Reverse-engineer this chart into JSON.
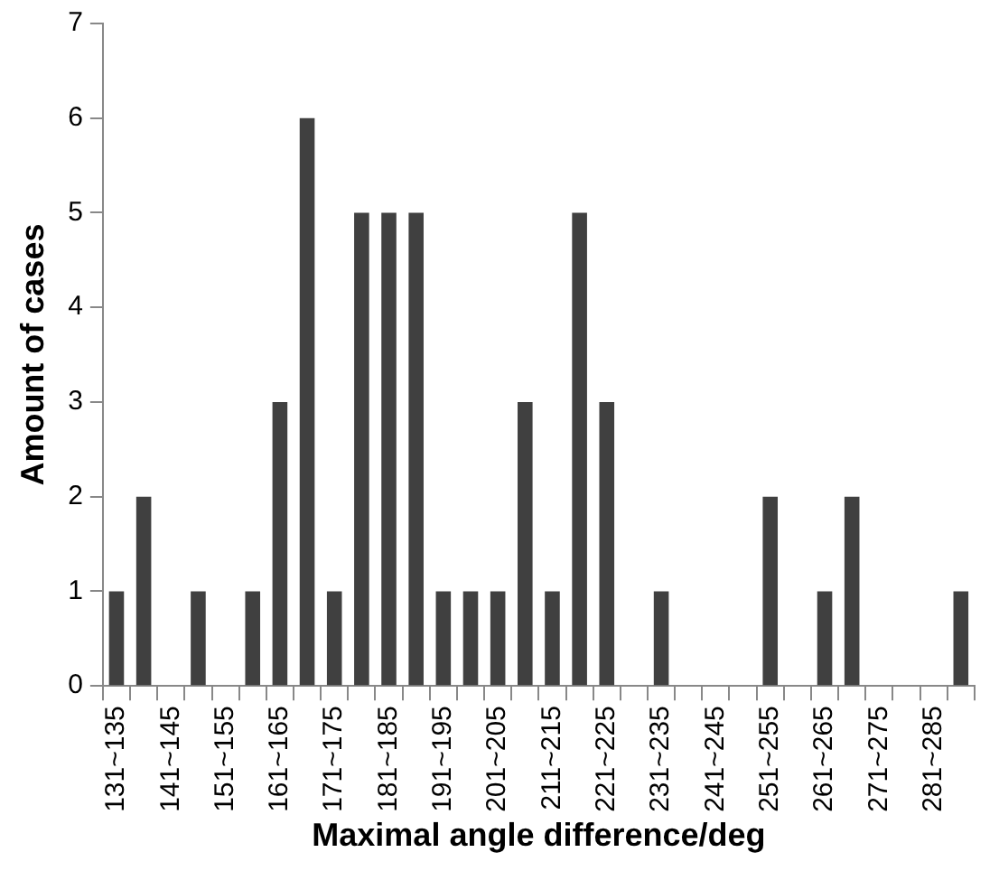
{
  "chart_data": {
    "type": "bar",
    "xlabel": "Maximal angle difference/deg",
    "ylabel": "Amount of cases",
    "categories": [
      "131~135",
      null,
      "141~145",
      null,
      "151~155",
      null,
      "161~165",
      null,
      "171~175",
      null,
      "181~185",
      null,
      "191~195",
      null,
      "201~205",
      null,
      "211~215",
      null,
      "221~225",
      null,
      "231~235",
      null,
      "241~245",
      null,
      "251~255",
      null,
      "261~265",
      null,
      "271~275",
      null,
      "281~285",
      null
    ],
    "values": [
      1,
      2,
      0,
      1,
      0,
      1,
      3,
      6,
      1,
      5,
      5,
      5,
      1,
      1,
      1,
      3,
      1,
      5,
      3,
      0,
      1,
      0,
      0,
      0,
      2,
      0,
      1,
      2,
      0,
      0,
      0,
      1
    ],
    "color": "#404040",
    "ylim": [
      0,
      7
    ],
    "yticks": [
      0,
      1,
      2,
      3,
      4,
      5,
      6,
      7
    ],
    "grid": false,
    "legend": false
  }
}
